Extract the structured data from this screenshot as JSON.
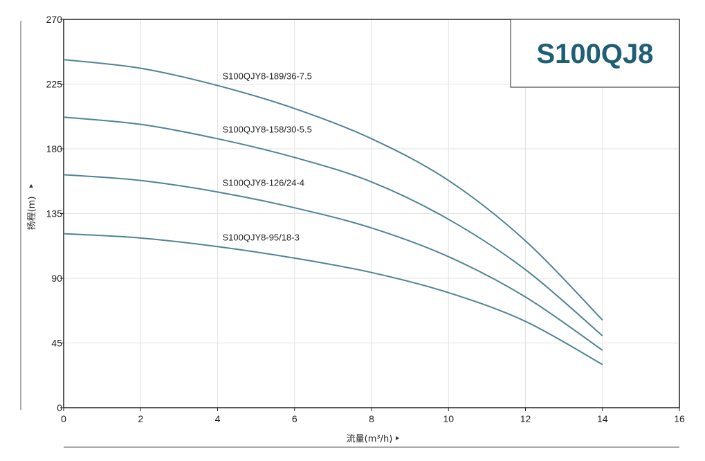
{
  "chart_data": {
    "type": "line",
    "title": "S100QJ8",
    "xlabel": "流量(m³/h)",
    "ylabel": "扬程(m)",
    "xlim": [
      0,
      16
    ],
    "ylim": [
      0,
      270
    ],
    "x_ticks": [
      "0",
      "2",
      "4",
      "6",
      "8",
      "10",
      "12",
      "14",
      "16"
    ],
    "y_ticks": [
      "0",
      "45",
      "90",
      "135",
      "180",
      "225",
      "270"
    ],
    "grid": true,
    "line_color": "#4f8396",
    "title_color": "#1f5f73",
    "series": [
      {
        "name": "S100QJY8-189/36-7.5",
        "x": [
          0,
          2,
          4,
          6,
          8,
          10,
          12,
          14
        ],
        "y": [
          242,
          236,
          224,
          208,
          187,
          158,
          116,
          61
        ]
      },
      {
        "name": "S100QJY8-158/30-5.5",
        "x": [
          0,
          2,
          4,
          6,
          8,
          10,
          12,
          14
        ],
        "y": [
          202,
          197,
          187,
          174,
          157,
          131,
          96,
          50
        ]
      },
      {
        "name": "S100QJY8-126/24-4",
        "x": [
          0,
          2,
          4,
          6,
          8,
          10,
          12,
          14
        ],
        "y": [
          162,
          158,
          150,
          139,
          125,
          105,
          77,
          40
        ]
      },
      {
        "name": "S100QJY8-95/18-3",
        "x": [
          0,
          2,
          4,
          6,
          8,
          10,
          12,
          14
        ],
        "y": [
          121,
          118,
          112,
          104,
          94,
          80,
          60,
          30
        ]
      }
    ]
  }
}
